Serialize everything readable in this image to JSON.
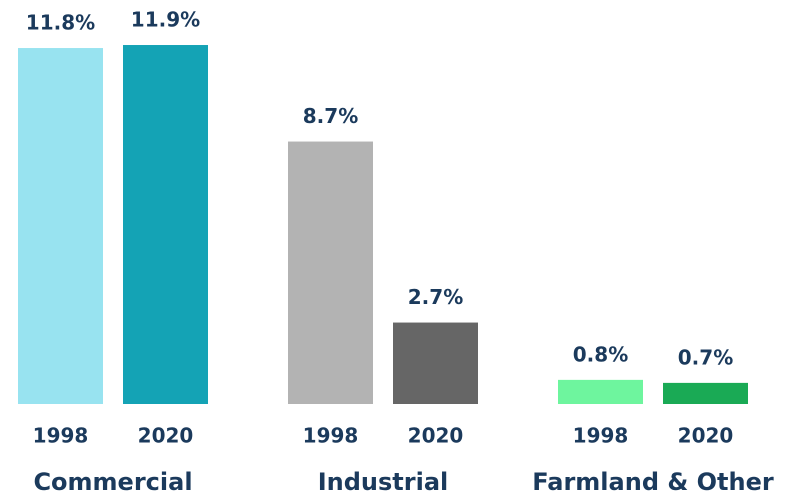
{
  "chart_data": {
    "type": "bar",
    "categories": [
      "Commercial",
      "Industrial",
      "Farmland & Other"
    ],
    "series": [
      {
        "name": "1998",
        "values": [
          11.8,
          8.7,
          0.8
        ],
        "value_labels": [
          "11.8%",
          "8.7%",
          "0.8%"
        ],
        "colors": [
          "#98e3f0",
          "#b3b3b3",
          "#6ef59e"
        ]
      },
      {
        "name": "2020",
        "values": [
          11.9,
          2.7,
          0.7
        ],
        "value_labels": [
          "11.9%",
          "2.7%",
          "0.7%"
        ],
        "colors": [
          "#14a3b5",
          "#666666",
          "#1aaa55"
        ]
      }
    ],
    "ylim": [
      0,
      12
    ]
  }
}
